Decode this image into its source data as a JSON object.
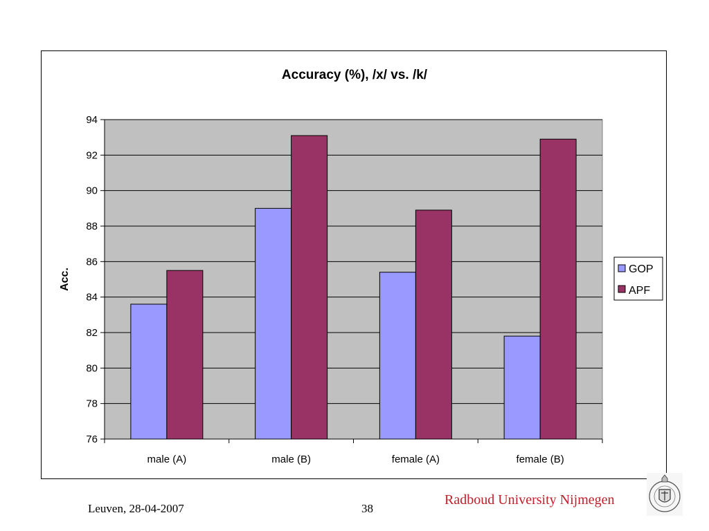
{
  "chart_data": {
    "type": "bar",
    "title": "Accuracy (%), /x/ vs. /k/",
    "ylabel": "Acc.",
    "xlabel": "",
    "categories": [
      "male (A)",
      "male (B)",
      "female (A)",
      "female (B)"
    ],
    "series": [
      {
        "name": "GOP",
        "values": [
          83.6,
          89.0,
          85.4,
          81.8
        ],
        "color": "#9999ff"
      },
      {
        "name": "APF",
        "values": [
          85.5,
          93.1,
          88.9,
          92.9
        ],
        "color": "#993366"
      }
    ],
    "ylim": [
      76,
      94
    ],
    "yticks": [
      "76",
      "78",
      "80",
      "82",
      "84",
      "86",
      "88",
      "90",
      "92",
      "94"
    ],
    "plot_background": "#c0c0c0",
    "grid": true,
    "legend_position": "right"
  },
  "footer": {
    "location_date": "Leuven, 28-04-2007",
    "page_number": "38",
    "university": "Radboud University Nijmegen"
  },
  "colors": {
    "university_text": "#c0202a"
  },
  "logo": {
    "icon": "university-seal-icon",
    "motto": "IN DEI NOMINE FELICITER"
  }
}
